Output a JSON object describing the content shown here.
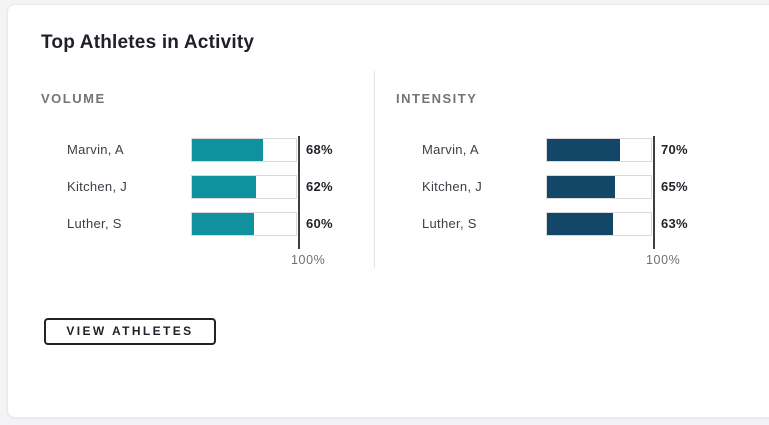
{
  "title": "Top Athletes in Activity",
  "chart_data": [
    {
      "type": "bar",
      "orientation": "horizontal",
      "title": "VOLUME",
      "categories": [
        "Marvin, A",
        "Kitchen, J",
        "Luther, S"
      ],
      "values": [
        68,
        62,
        60
      ],
      "value_labels": [
        "68%",
        "62%",
        "60%"
      ],
      "xlim": [
        0,
        100
      ],
      "axis_max_label": "100%",
      "bar_color": "#10929E",
      "grid": false,
      "legend": "none"
    },
    {
      "type": "bar",
      "orientation": "horizontal",
      "title": "INTENSITY",
      "categories": [
        "Marvin, A",
        "Kitchen, J",
        "Luther, S"
      ],
      "values": [
        70,
        65,
        63
      ],
      "value_labels": [
        "70%",
        "65%",
        "63%"
      ],
      "xlim": [
        0,
        100
      ],
      "axis_max_label": "100%",
      "bar_color": "#134768",
      "grid": false,
      "legend": "none"
    }
  ],
  "button": {
    "label": "VIEW ATHLETES"
  },
  "colors": {
    "page_bg": "#F4F4F6",
    "card_bg": "#FFFFFF",
    "card_border": "#EAEAEC",
    "title_text": "#1E2127",
    "section_header": "#71757A",
    "athlete_label": "#3B3F45",
    "value_text": "#1F2228",
    "axis_line": "#3A3F45",
    "track_border": "#D9D9DB",
    "divider": "#E4E4E6"
  }
}
